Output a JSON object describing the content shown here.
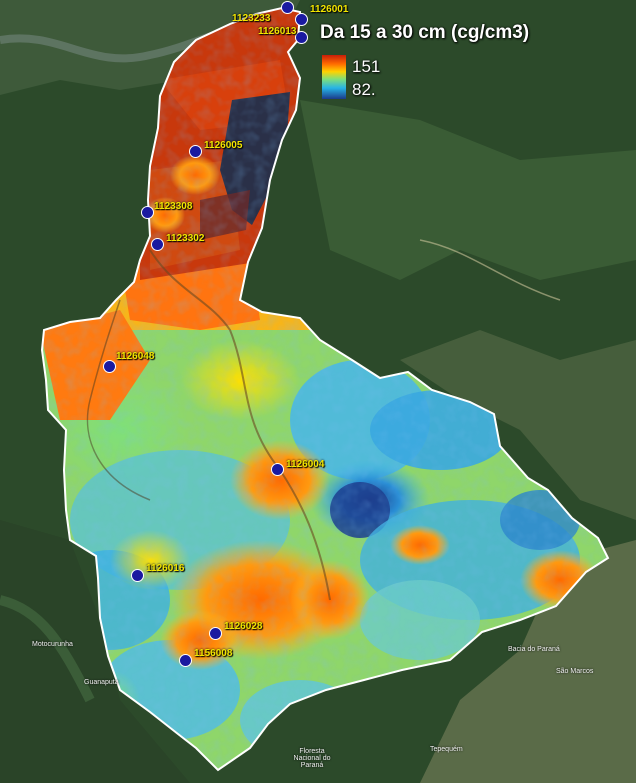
{
  "legend": {
    "title": "Da 15 a 30 cm (cg/cm3)",
    "max": "151",
    "min": "82."
  },
  "colors": {
    "high": "#c81e0a",
    "mid_high": "#ff6a00",
    "mid": "#ffd200",
    "mid_low": "#7fe07a",
    "low": "#27b4e6",
    "lowest": "#1b3a8a",
    "station_fill": "#1a1aa0",
    "station_label": "#f2e600"
  },
  "stations": [
    {
      "id": "1126001",
      "label": "1126001"
    },
    {
      "id": "1123233",
      "label": "1123233"
    },
    {
      "id": "1126013",
      "label": "1126013"
    },
    {
      "id": "1126005",
      "label": "1126005"
    },
    {
      "id": "1123308",
      "label": "1123308"
    },
    {
      "id": "1123302",
      "label": "1123302"
    },
    {
      "id": "1126048",
      "label": "1126048"
    },
    {
      "id": "1126004",
      "label": "1126004"
    },
    {
      "id": "1126016",
      "label": "1126016"
    },
    {
      "id": "1126028",
      "label": "1126028"
    },
    {
      "id": "1156008",
      "label": "1156008"
    }
  ],
  "places": [
    {
      "label": "Motocurunha"
    },
    {
      "label": "Guanaputa"
    },
    {
      "label": "Floresta Nacional do Paraná"
    },
    {
      "label": "São Marcos"
    },
    {
      "label": "Tepequém"
    },
    {
      "label": "Bacia do Paraná"
    }
  ]
}
